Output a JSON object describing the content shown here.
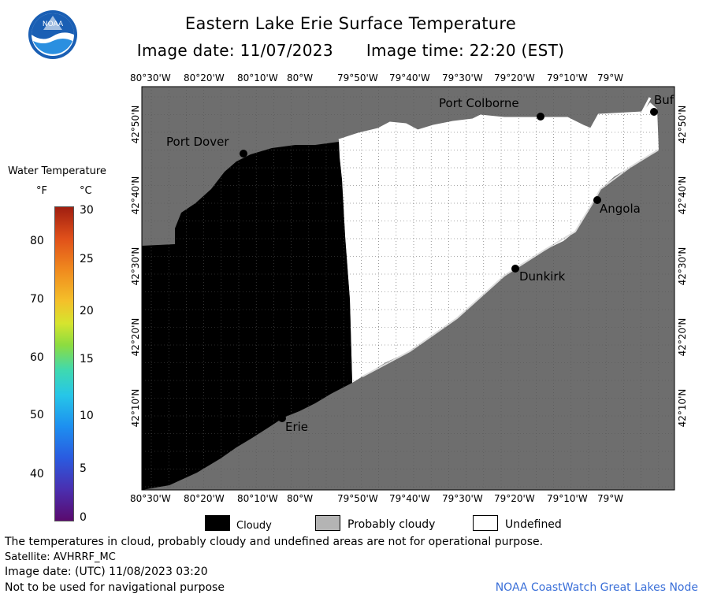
{
  "header": {
    "title": "Eastern Lake Erie Surface Temperature",
    "image_date_label": "Image date: 11/07/2023",
    "image_time_label": "Image time: 22:20 (EST)"
  },
  "logo": {
    "text": "NOAA"
  },
  "axes": {
    "longitude_ticks": [
      "80°30'W",
      "80°20'W",
      "80°10'W",
      "80°W",
      "79°50'W",
      "79°40'W",
      "79°30'W",
      "79°20'W",
      "79°10'W",
      "79°W"
    ],
    "latitude_ticks": [
      "42°50'N",
      "42°40'N",
      "42°30'N",
      "42°20'N",
      "42°10'N"
    ]
  },
  "cities": [
    {
      "name": "Port Colborne"
    },
    {
      "name": "Port Dover"
    },
    {
      "name": "Buf"
    },
    {
      "name": "Angola"
    },
    {
      "name": "Dunkirk"
    },
    {
      "name": "Erie"
    }
  ],
  "legend": {
    "title": "Water Temperature",
    "unit_f": "°F",
    "unit_c": "°C",
    "fahrenheit_labels": [
      "80",
      "70",
      "60",
      "50",
      "40"
    ],
    "celsius_labels": [
      "30",
      "25",
      "20",
      "15",
      "10",
      "5",
      "0"
    ]
  },
  "key": {
    "cloudy": "Cloudy",
    "probably_cloudy": "Probably cloudy",
    "undefined": "Undefined"
  },
  "colors": {
    "land": "#6e6e6e",
    "cloudy": "#000000",
    "probably_cloudy": "#b4b4b4",
    "undefined": "#ffffff",
    "credit": "#3a6fd8"
  },
  "notes": {
    "disclaimer": "The temperatures in cloud, probably cloudy and undefined areas are not for operational purpose.",
    "satellite": "Satellite: AVHRRF_MC",
    "utc_date": "Image date: (UTC) 11/08/2023  03:20",
    "navigation": "Not to be used for navigational purpose",
    "credit": "NOAA CoastWatch Great Lakes Node"
  }
}
